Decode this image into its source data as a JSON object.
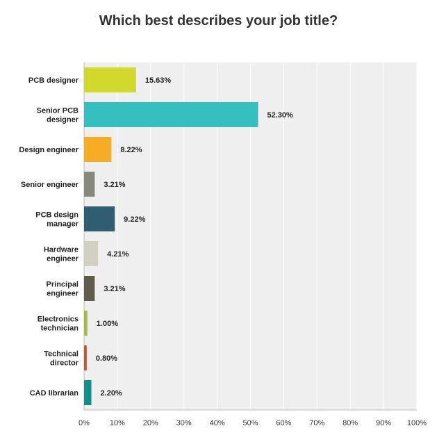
{
  "chart_data": {
    "type": "bar",
    "orientation": "horizontal",
    "title": "Which best describes your job title?",
    "xlabel": "",
    "ylabel": "",
    "xlim": [
      0,
      100
    ],
    "x_ticks": [
      "0%",
      "10%",
      "20%",
      "30%",
      "40%",
      "50%",
      "60%",
      "70%",
      "80%",
      "90%",
      "100%"
    ],
    "grid": true,
    "categories": [
      [
        "PCB designer"
      ],
      [
        "Senior PCB",
        "designer"
      ],
      [
        "Design engineer"
      ],
      [
        "Senior engineer"
      ],
      [
        "PCB design",
        "manager"
      ],
      [
        "Hardware",
        "engineer"
      ],
      [
        "Principal",
        "engineer"
      ],
      [
        "Electronics",
        "technician"
      ],
      [
        "Technical",
        "director"
      ],
      [
        "CAD librarian"
      ]
    ],
    "values": [
      15.63,
      52.3,
      8.22,
      3.21,
      9.22,
      4.21,
      3.21,
      1.0,
      0.8,
      2.2
    ],
    "value_labels": [
      "15.63%",
      "52.30%",
      "8.22%",
      "3.21%",
      "9.22%",
      "4.21%",
      "3.21%",
      "1.00%",
      "0.80%",
      "2.20%"
    ],
    "colors": [
      "#d1d92a",
      "#35bfbf",
      "#f6ac24",
      "#878a7b",
      "#2e5e6f",
      "#d2d1c1",
      "#5e5c4b",
      "#a8bc39",
      "#c4552a",
      "#10918e"
    ]
  }
}
